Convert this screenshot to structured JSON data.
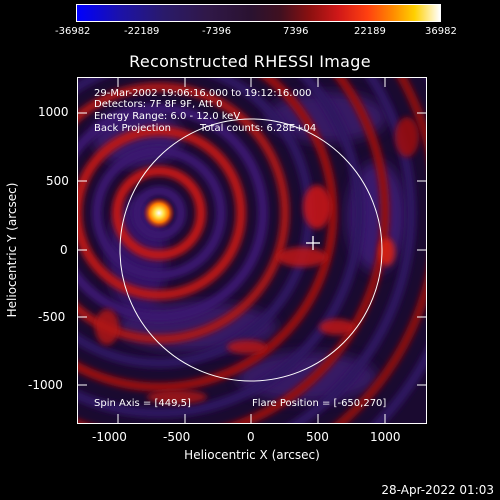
{
  "colorbar": {
    "ticks": [
      "-36982",
      "-22189",
      "-7396",
      "7396",
      "22189",
      "36982"
    ],
    "range": [
      -36982,
      36982
    ]
  },
  "title": "Reconstructed RHESSI Image",
  "info": {
    "time_range": "29-Mar-2002 19:06:16.000 to 19:12:16.000",
    "detectors": "Detectors: 7F 8F 9F, Att 0",
    "energy": "Energy Range: 6.0 - 12.0 keV",
    "method": "Back Projection",
    "counts": "Total counts: 6.28E+04",
    "spin_axis": "Spin Axis = [449,5]",
    "flare_position": "Flare Position = [-650,270]"
  },
  "axes": {
    "xlabel": "Heliocentric X (arcsec)",
    "ylabel": "Heliocentric Y (arcsec)",
    "xticks": [
      "-1000",
      "-500",
      "0",
      "500",
      "1000"
    ],
    "yticks": [
      "1000",
      "500",
      "0",
      "-500",
      "-1000"
    ],
    "xlim": [
      -1300,
      1300
    ],
    "ylim": [
      -1300,
      1300
    ]
  },
  "overlay": {
    "solar_limb_radius_arcsec": 960,
    "spin_axis_marker": [
      449,
      5
    ],
    "flare_source": [
      -650,
      270
    ]
  },
  "footer": {
    "datetime": "28-Apr-2022 01:03"
  }
}
